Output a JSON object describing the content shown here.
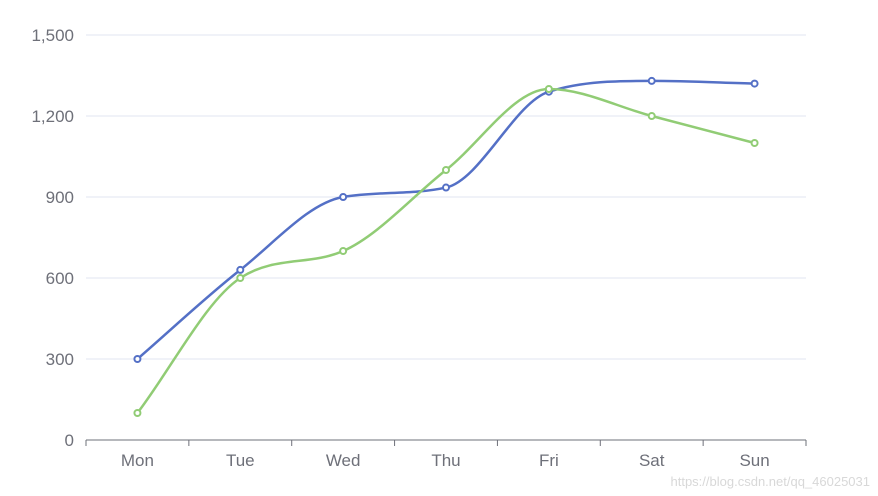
{
  "chart_data": {
    "type": "line",
    "categories": [
      "Mon",
      "Tue",
      "Wed",
      "Thu",
      "Fri",
      "Sat",
      "Sun"
    ],
    "series": [
      {
        "color": "#5470c6",
        "values": [
          300,
          630,
          900,
          935,
          1290,
          1330,
          1320
        ],
        "smooth": true
      },
      {
        "color": "#91cc75",
        "values": [
          100,
          600,
          700,
          1000,
          1300,
          1200,
          1100
        ],
        "smooth": true
      }
    ],
    "yticks": [
      "0",
      "300",
      "600",
      "900",
      "1,200",
      "1,500"
    ],
    "ylim": [
      0,
      1500
    ],
    "grid": "horizontal"
  },
  "watermark": "https://blog.csdn.net/qq_46025031"
}
